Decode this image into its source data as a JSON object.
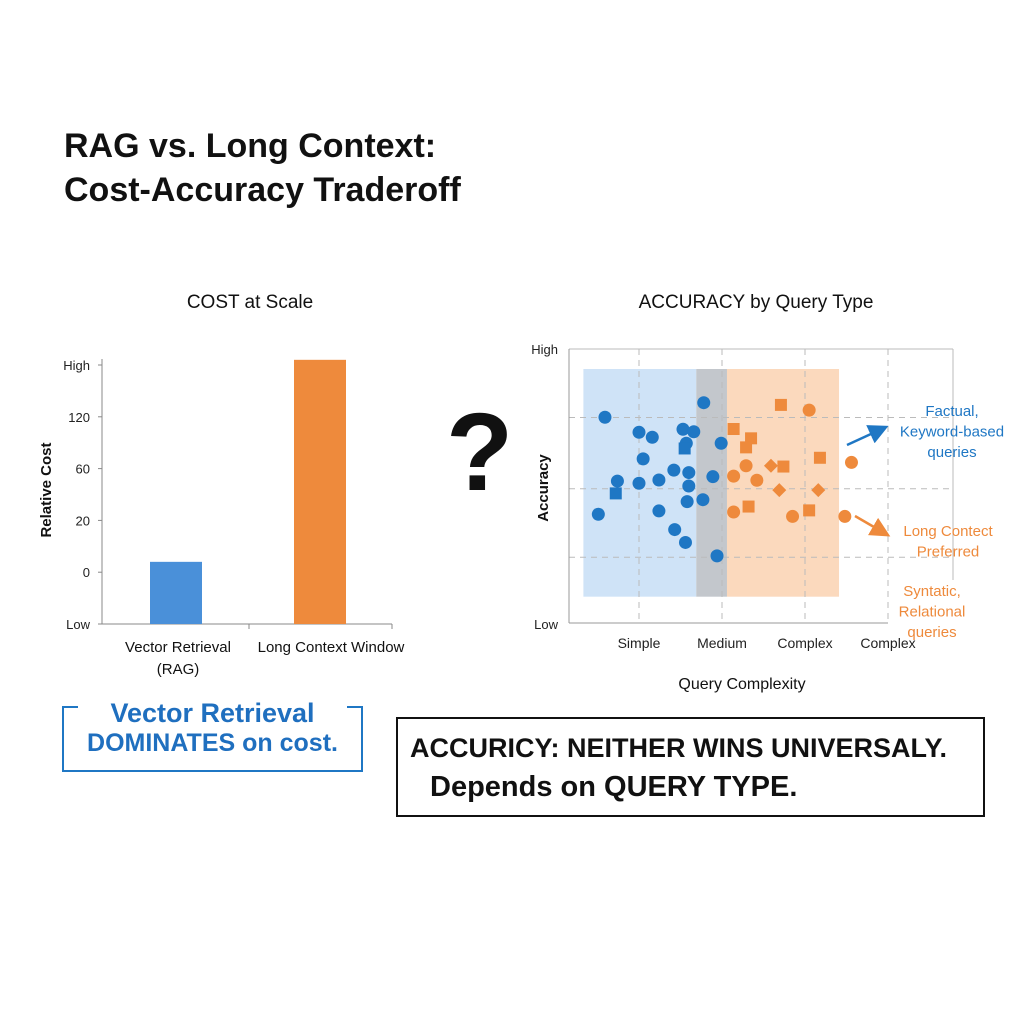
{
  "title": {
    "line1": "RAG vs. Long Context:",
    "line2": "Cost-Accuracy Traderoff"
  },
  "divider_symbol": "?",
  "colors": {
    "rag_blue": "#4a90d9",
    "long_context_orange": "#ee8a3c",
    "blue_region": "#cfe3f7",
    "orange_region": "#fbd9bd",
    "overlap_region": "#c3c7cc",
    "blue_points": "#1f77c4",
    "orange_points": "#ee8a3c"
  },
  "chart_data": [
    {
      "type": "bar",
      "title": "COST at Scale",
      "ylabel": "Relative Cost",
      "xlabel": "",
      "y_ticks": [
        "High",
        "120",
        "60",
        "20",
        "0",
        "Low"
      ],
      "categories": [
        "Vector Retrieval (RAG)",
        "Long Context Window"
      ],
      "category_lines": [
        [
          "Vector Retrieval",
          "(RAG)"
        ],
        [
          "Long Context Window"
        ]
      ],
      "values_relative_level_low0_high1": [
        0.24,
        1.02
      ],
      "bar_colors": [
        "#4a90d9",
        "#ee8a3c"
      ],
      "grid": false
    },
    {
      "type": "scatter",
      "title": "ACCURACY by Query Type",
      "xlabel": "Query Complexity",
      "ylabel": "Accuracy",
      "x_ticks": [
        {
          "label": "Simple",
          "value": 1
        },
        {
          "label": "Medium",
          "value": 2
        },
        {
          "label": "Complex",
          "value": 3
        },
        {
          "label": "Complex",
          "value": 4
        }
      ],
      "y_range_labels": {
        "low": "Low",
        "high": "High"
      },
      "xlim": [
        0.16,
        4.78
      ],
      "ylim": [
        0,
        100
      ],
      "y_grid_values": [
        75,
        49,
        24
      ],
      "grid": true,
      "regions": [
        {
          "kind": "blue",
          "x": [
            0.33,
            1.69
          ],
          "y": [
            9.6,
            92.7
          ]
        },
        {
          "kind": "overlap",
          "x": [
            1.69,
            2.06
          ],
          "y": [
            9.6,
            92.7
          ]
        },
        {
          "kind": "orange",
          "x": [
            2.06,
            3.41
          ],
          "y": [
            9.6,
            92.7
          ]
        }
      ],
      "series": [
        {
          "color": "#1f77c4",
          "marker": "circle",
          "points": [
            [
              0.59,
              75.1
            ],
            [
              1.0,
              69.6
            ],
            [
              1.16,
              67.8
            ],
            [
              1.53,
              70.7
            ],
            [
              1.66,
              69.8
            ],
            [
              1.57,
              65.6
            ],
            [
              1.78,
              80.4
            ],
            [
              1.99,
              65.6
            ],
            [
              1.05,
              59.9
            ],
            [
              0.74,
              51.8
            ],
            [
              1.0,
              51.0
            ],
            [
              1.24,
              52.2
            ],
            [
              1.42,
              55.8
            ],
            [
              1.6,
              54.9
            ],
            [
              1.6,
              50.0
            ],
            [
              1.89,
              53.4
            ],
            [
              1.58,
              44.3
            ],
            [
              1.77,
              45.0
            ],
            [
              1.24,
              40.9
            ],
            [
              0.51,
              39.7
            ],
            [
              1.43,
              34.1
            ],
            [
              1.56,
              29.4
            ],
            [
              1.94,
              24.5
            ]
          ]
        },
        {
          "color": "#1f77c4",
          "marker": "square",
          "points": [
            [
              0.72,
              47.3
            ],
            [
              1.55,
              63.7
            ]
          ]
        },
        {
          "color": "#ee8a3c",
          "marker": "square",
          "points": [
            [
              2.71,
              79.6
            ],
            [
              2.14,
              70.8
            ],
            [
              2.35,
              67.4
            ],
            [
              2.29,
              64.1
            ],
            [
              3.18,
              60.3
            ],
            [
              2.74,
              57.1
            ],
            [
              2.32,
              42.5
            ],
            [
              3.05,
              41.1
            ]
          ]
        },
        {
          "color": "#ee8a3c",
          "marker": "circle",
          "points": [
            [
              3.05,
              77.7
            ],
            [
              3.56,
              58.6
            ],
            [
              2.29,
              57.4
            ],
            [
              2.14,
              53.6
            ],
            [
              2.42,
              52.1
            ],
            [
              2.14,
              40.5
            ],
            [
              2.85,
              38.9
            ],
            [
              3.48,
              38.9
            ]
          ]
        },
        {
          "color": "#ee8a3c",
          "marker": "diamond",
          "points": [
            [
              2.59,
              57.4
            ],
            [
              2.69,
              48.5
            ],
            [
              3.16,
              48.5
            ]
          ]
        }
      ],
      "annotations": [
        {
          "lines": [
            "Factual,",
            "Keyword-based",
            "queries"
          ],
          "color": "#1f77c4",
          "arrow": true
        },
        {
          "lines": [
            "Long Contect",
            "Preferred"
          ],
          "color": "#ee8a3c",
          "arrow": true
        },
        {
          "lines": [
            "Syntatic,",
            "Relational",
            "queries"
          ],
          "color": "#ee8a3c",
          "arrow": false
        }
      ]
    }
  ],
  "callouts": {
    "cost": {
      "line1": "Vector Retrieval",
      "line2": "DOMINATES on cost."
    },
    "accuracy": {
      "line1": "ACCURICY: NEITHER WINS UNIVERSALY.",
      "line2": "Depends on QUERY TYPE."
    }
  }
}
